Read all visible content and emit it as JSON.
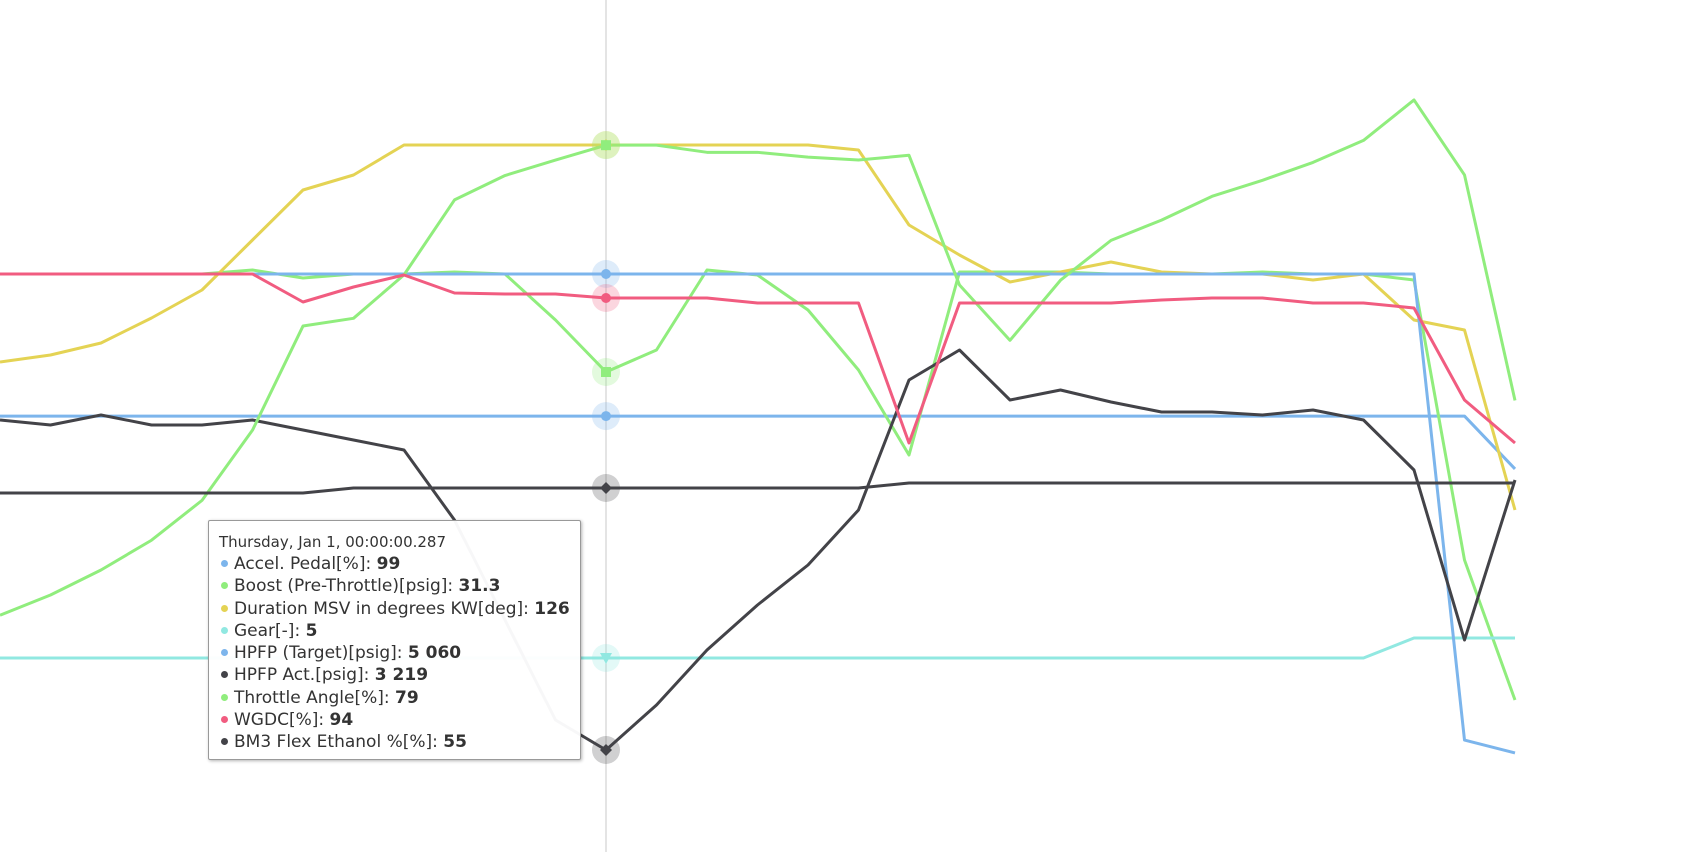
{
  "chart_data": {
    "type": "line",
    "series": [
      {
        "name": "Accel. Pedal[%]",
        "color": "#7cb5ec",
        "marker": "circle",
        "ylim": [
          0,
          193.5
        ],
        "values": [
          99,
          99,
          99,
          99,
          99,
          99,
          99,
          99,
          99,
          99,
          99,
          99,
          99,
          99,
          99,
          99,
          99,
          99,
          99,
          99,
          99,
          99,
          99,
          99,
          99,
          99,
          99,
          99,
          99,
          99,
          87
        ]
      },
      {
        "name": "Boost (Pre-Throttle)[psig]",
        "color": "#90ed7d",
        "marker": "square",
        "ylim": [
          -16.7,
          68.5
        ],
        "values": [
          41.1,
          41.1,
          41.1,
          41.1,
          41.1,
          41.5,
          40.7,
          41.1,
          41.1,
          41.3,
          41.1,
          36.5,
          31.3,
          33.5,
          41.5,
          41,
          37.5,
          31.5,
          23,
          41.3,
          41.3,
          41.3,
          41.1,
          41.1,
          41.1,
          41.3,
          41.1,
          41.1,
          40.5,
          12.5,
          -1.5
        ]
      },
      {
        "name": "Duration MSV in degrees KW[deg]",
        "color": "#e4d354",
        "marker": "diamond",
        "ylim": [
          -227.5,
          198.5
        ],
        "values": [
          17.5,
          21,
          27,
          39.5,
          53.5,
          78.5,
          103.5,
          111,
          126,
          126,
          126,
          126,
          126,
          126,
          126,
          126,
          126,
          123.5,
          86,
          71,
          57.5,
          62.5,
          67.5,
          62.5,
          61.5,
          61.5,
          58.5,
          61.5,
          38.5,
          33.5,
          -56.5
        ]
      },
      {
        "name": "Gear[-]",
        "color": "#91e8e1",
        "marker": "triangle-down",
        "ylim": [
          -4.7,
          37.9
        ],
        "values": [
          5,
          5,
          5,
          5,
          5,
          5,
          5,
          5,
          5,
          5,
          5,
          5,
          5,
          5,
          5,
          5,
          5,
          5,
          5,
          5,
          5,
          5,
          5,
          5,
          5,
          5,
          5,
          5,
          6,
          6,
          6
        ]
      },
      {
        "name": "HPFP (Target)[psig]",
        "color": "#7cb5ec",
        "marker": "circle",
        "ylim": [
          0,
          7458.7
        ],
        "values": [
          5060,
          5060,
          5060,
          5060,
          5060,
          5060,
          5060,
          5060,
          5060,
          5060,
          5060,
          5060,
          5060,
          5060,
          5060,
          5060,
          5060,
          5060,
          5060,
          5060,
          5060,
          5060,
          5060,
          5060,
          5060,
          5060,
          5060,
          5060,
          5060,
          980,
          867
        ]
      },
      {
        "name": "HPFP Act.[psig]",
        "color": "#434348",
        "marker": "diamond",
        "ylim": [
          2199,
          10719
        ],
        "values": [
          6519,
          6469,
          6569,
          6469,
          6469,
          6519,
          6419,
          6319,
          6219,
          5519,
          4519,
          3519,
          3219,
          3669,
          4219,
          4669,
          5069,
          5619,
          6919,
          7219,
          6719,
          6819,
          6699,
          6599,
          6599,
          6569,
          6619,
          6519,
          6019,
          4319,
          5919
        ]
      },
      {
        "name": "Throttle Angle[%]",
        "color": "#90ed7d",
        "marker": "square",
        "ylim": [
          -39.8,
          103.4
        ],
        "values": [
          0,
          3.4,
          7.6,
          12.6,
          19.3,
          31.1,
          48.6,
          49.9,
          57.2,
          69.8,
          73.9,
          76.5,
          79,
          79,
          77.8,
          77.8,
          77,
          76.5,
          77.3,
          55.5,
          46.2,
          56.3,
          63,
          66.4,
          70.4,
          73.1,
          76.1,
          79.8,
          86.6,
          74,
          36.1
        ]
      },
      {
        "name": "WGDC[%]",
        "color": "#f15c80",
        "marker": "circle",
        "ylim": [
          38.6,
          123.8
        ],
        "values": [
          96.4,
          96.4,
          96.4,
          96.4,
          96.4,
          96.4,
          93.6,
          95.1,
          96.3,
          94.5,
          94.4,
          94.4,
          94,
          94,
          94,
          93.5,
          93.5,
          93.5,
          79.5,
          93.5,
          93.5,
          93.5,
          93.5,
          93.8,
          94,
          94,
          93.5,
          93.5,
          93,
          83.8,
          79.5
        ]
      },
      {
        "name": "BM3 Flex Ethanol %[%]",
        "color": "#434348",
        "marker": "diamond",
        "ylim": [
          -17.8,
          152.6
        ],
        "values": [
          54,
          54,
          54,
          54,
          54,
          54,
          54,
          55,
          55,
          55,
          55,
          55,
          55,
          55,
          55,
          55,
          55,
          55,
          56,
          56,
          56,
          56,
          56,
          56,
          56,
          56,
          56,
          56,
          56,
          56,
          56
        ]
      }
    ],
    "tooltip": {
      "header": "Thursday, Jan 1, 00:00:00.287",
      "value_labels": [
        "99",
        "31.3",
        "126",
        "5",
        "5 060",
        "3 219",
        "79",
        "94",
        "55"
      ]
    }
  }
}
